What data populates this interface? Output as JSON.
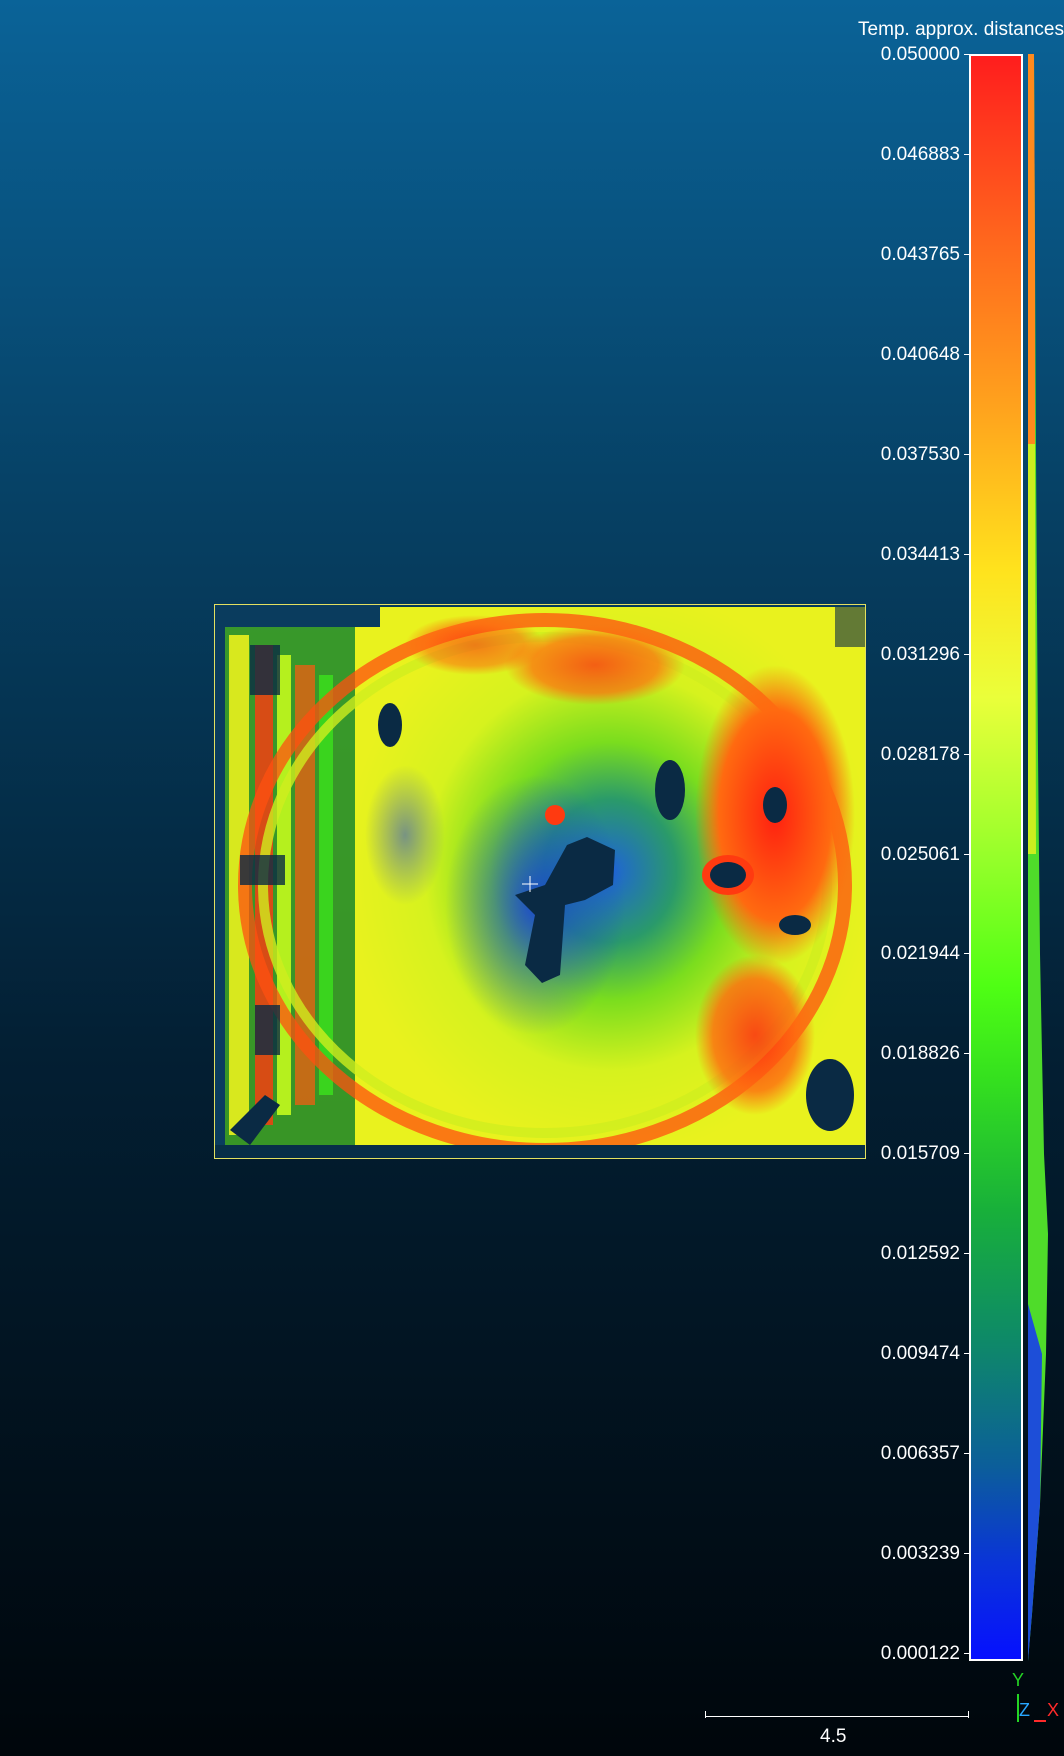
{
  "scalar_field": {
    "title": "Temp. approx. distances",
    "ticks": [
      "0.050000",
      "0.046883",
      "0.043765",
      "0.040648",
      "0.037530",
      "0.034413",
      "0.031296",
      "0.028178",
      "0.025061",
      "0.021944",
      "0.018826",
      "0.015709",
      "0.012592",
      "0.009474",
      "0.006357",
      "0.003239",
      "0.000122"
    ],
    "colors": {
      "max": "#ff1d1d",
      "mid": "#4fff14",
      "min": "#0610ff"
    }
  },
  "axes": {
    "y": "Y",
    "z": "Z",
    "x": "X"
  },
  "scale_bar": {
    "label": "4.5"
  },
  "icons": {
    "center": "crosshair-icon"
  }
}
